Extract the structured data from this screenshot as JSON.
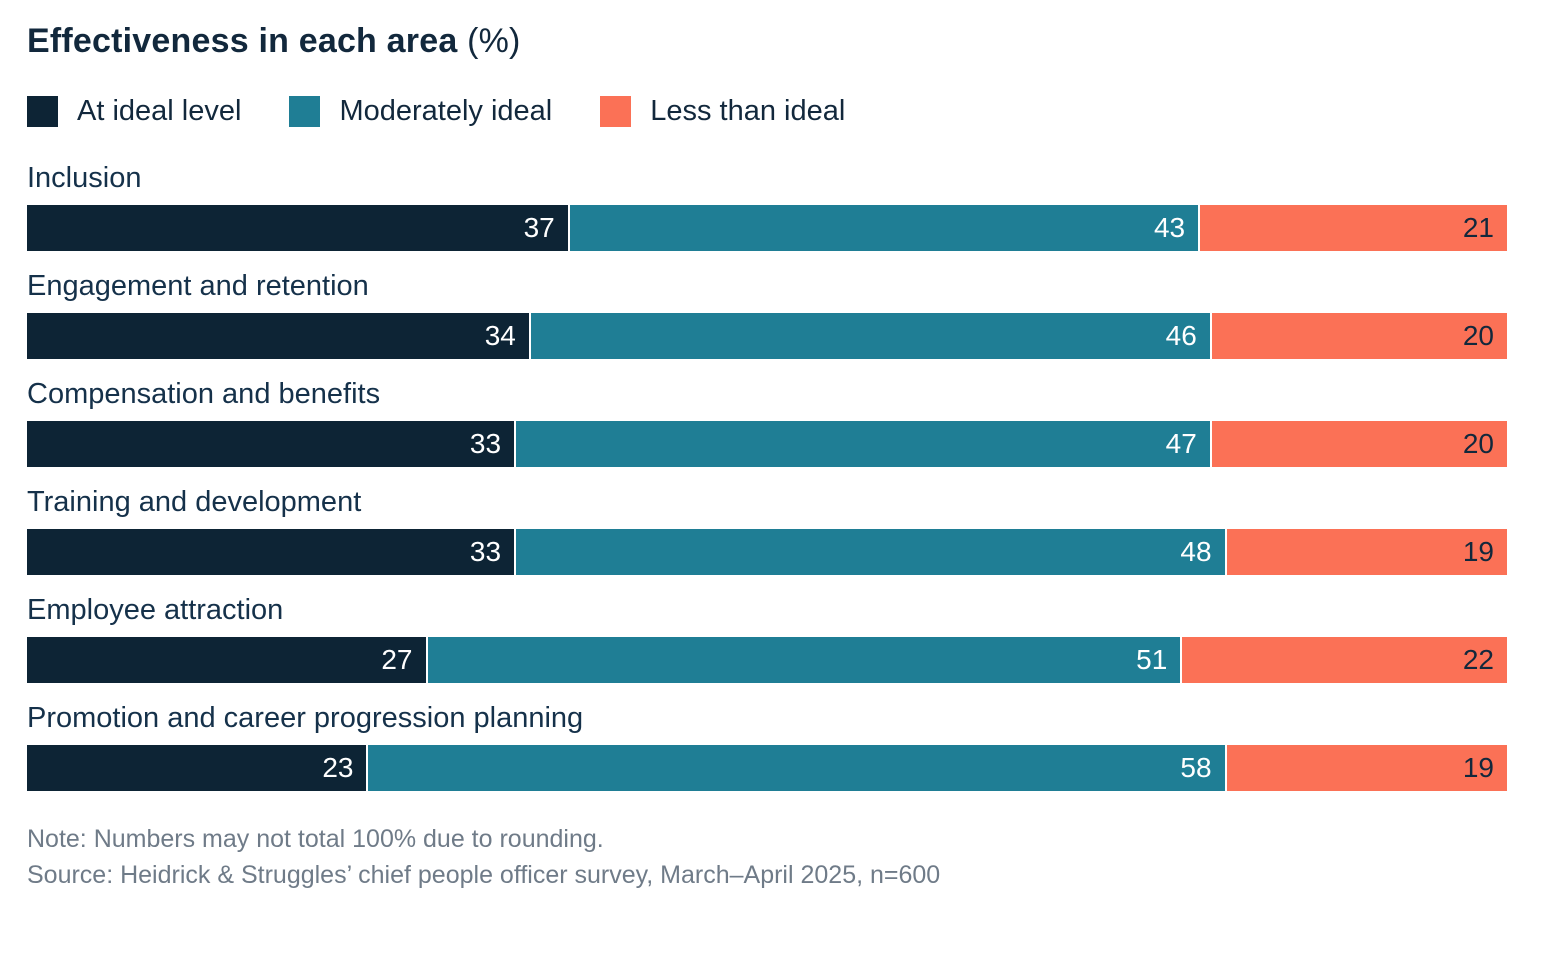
{
  "title": {
    "main": "Effectiveness in each area",
    "suffix": " (%)"
  },
  "legend": [
    {
      "label": "At ideal level",
      "color": "#0d2435"
    },
    {
      "label": "Moderately ideal",
      "color": "#1f7e95"
    },
    {
      "label": "Less than ideal",
      "color": "#fb7156"
    }
  ],
  "chart_data": {
    "type": "bar",
    "orientation": "horizontal-stacked",
    "title": "Effectiveness in each area (%)",
    "xlim": [
      0,
      100
    ],
    "grid": false,
    "legend_position": "top",
    "value_labels": "inside-right",
    "categories": [
      "Inclusion",
      "Engagement and retention",
      "Compensation and benefits",
      "Training and development",
      "Employee attraction",
      "Promotion and career progression planning"
    ],
    "series": [
      {
        "name": "At ideal level",
        "color": "#0d2435",
        "label_color": "#ffffff",
        "values": [
          37,
          34,
          33,
          33,
          27,
          23
        ]
      },
      {
        "name": "Moderately ideal",
        "color": "#1f7e95",
        "label_color": "#ffffff",
        "values": [
          43,
          46,
          47,
          48,
          51,
          58
        ]
      },
      {
        "name": "Less than ideal",
        "color": "#fb7156",
        "label_color": "#12283c",
        "values": [
          21,
          20,
          20,
          19,
          22,
          19
        ]
      }
    ]
  },
  "notes": {
    "note": "Note: Numbers may not total 100% due to rounding.",
    "source": "Source: Heidrick & Struggles’ chief people officer survey, March–April 2025, n=600"
  }
}
